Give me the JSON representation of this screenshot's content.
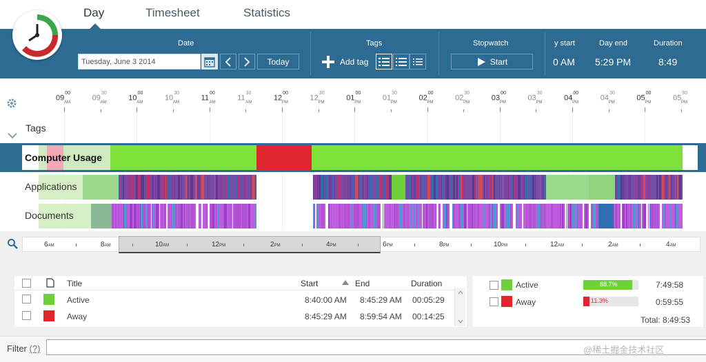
{
  "tabs": [
    "Day",
    "Timesheet",
    "Statistics"
  ],
  "toolbar": {
    "date_title": "Date",
    "date_value": "Tuesday, June 3 2014",
    "today_label": "Today",
    "tags_title": "Tags",
    "add_tag_label": "Add tag",
    "stopwatch_title": "Stopwatch",
    "start_label": "Start",
    "day_start_title": "y start",
    "day_start_value": "0 AM",
    "day_end_title": "Day end",
    "day_end_value": "5:29 PM",
    "duration_title": "Duration",
    "duration_value": "8:49"
  },
  "ruler": {
    "hours": [
      {
        "h": "09",
        "m": "00",
        "ap": "AM"
      },
      {
        "h": "10",
        "m": "00",
        "ap": "AM"
      },
      {
        "h": "11",
        "m": "00",
        "ap": "AM"
      },
      {
        "h": "12",
        "m": "00",
        "ap": "PM"
      },
      {
        "h": "01",
        "m": "00",
        "ap": "PM"
      },
      {
        "h": "02",
        "m": "00",
        "ap": "PM"
      },
      {
        "h": "03",
        "m": "00",
        "ap": "PM"
      },
      {
        "h": "04",
        "m": "00",
        "ap": "PM"
      },
      {
        "h": "05",
        "m": "00",
        "ap": "PM"
      }
    ],
    "halves": [
      {
        "h": "09",
        "m": "30",
        "ap": "AM"
      },
      {
        "h": "10",
        "m": "30",
        "ap": "AM"
      },
      {
        "h": "11",
        "m": "30",
        "ap": "AM"
      },
      {
        "h": "12",
        "m": "30",
        "ap": "PM"
      },
      {
        "h": "01",
        "m": "30",
        "ap": "PM"
      },
      {
        "h": "02",
        "m": "30",
        "ap": "PM"
      },
      {
        "h": "03",
        "m": "30",
        "ap": "PM"
      },
      {
        "h": "04",
        "m": "30",
        "ap": "PM"
      },
      {
        "h": "05",
        "m": "30",
        "ap": "PM"
      }
    ]
  },
  "rows": {
    "tags": "Tags",
    "computer_usage": "Computer Usage",
    "applications": "Applications",
    "documents": "Documents"
  },
  "overview_labels": [
    {
      "t": "6",
      "ap": "AM"
    },
    {
      "t": "8",
      "ap": "AM"
    },
    {
      "t": "10",
      "ap": "AM"
    },
    {
      "t": "12",
      "ap": "PM"
    },
    {
      "t": "2",
      "ap": "PM"
    },
    {
      "t": "4",
      "ap": "PM"
    },
    {
      "t": "6",
      "ap": "PM"
    },
    {
      "t": "8",
      "ap": "PM"
    },
    {
      "t": "10",
      "ap": "PM"
    },
    {
      "t": "12",
      "ap": "AM"
    },
    {
      "t": "2",
      "ap": "AM"
    },
    {
      "t": "4",
      "ap": "AM"
    }
  ],
  "table": {
    "headers": {
      "title": "Title",
      "start": "Start",
      "end": "End",
      "duration": "Duration"
    },
    "rows": [
      {
        "title": "Active",
        "start": "8:40:00 AM",
        "end": "8:45:29 AM",
        "duration": "00:05:29",
        "color": "#6fd13a"
      },
      {
        "title": "Away",
        "start": "8:45:29 AM",
        "end": "8:59:54 AM",
        "duration": "00:14:25",
        "color": "#e0262d"
      }
    ]
  },
  "summary": {
    "rows": [
      {
        "label": "Active",
        "pct_text": "88.7%",
        "pct": 88.7,
        "time": "7:49:58",
        "color": "#6fd13a"
      },
      {
        "label": "Away",
        "pct_text": "11.3%",
        "pct": 11.3,
        "time": "0:59:55",
        "color": "#e0262d"
      }
    ],
    "total": "Total: 8:49:53"
  },
  "filter": {
    "label": "Filter",
    "help": "(?)",
    "value": ""
  },
  "watermark": "@稀土掘金技术社区",
  "colors": {
    "toolbar": "#2e6b92",
    "active": "#6fd13a",
    "away": "#e0262d",
    "selected_row": "#2e6b92"
  },
  "icons": [
    "clock-logo-icon",
    "calendar-icon",
    "chevron-left-icon",
    "chevron-right-icon",
    "plus-icon",
    "list-view-icon",
    "play-icon",
    "gear-icon",
    "search-icon",
    "chevron-down-icon",
    "document-icon",
    "sort-asc-icon"
  ]
}
